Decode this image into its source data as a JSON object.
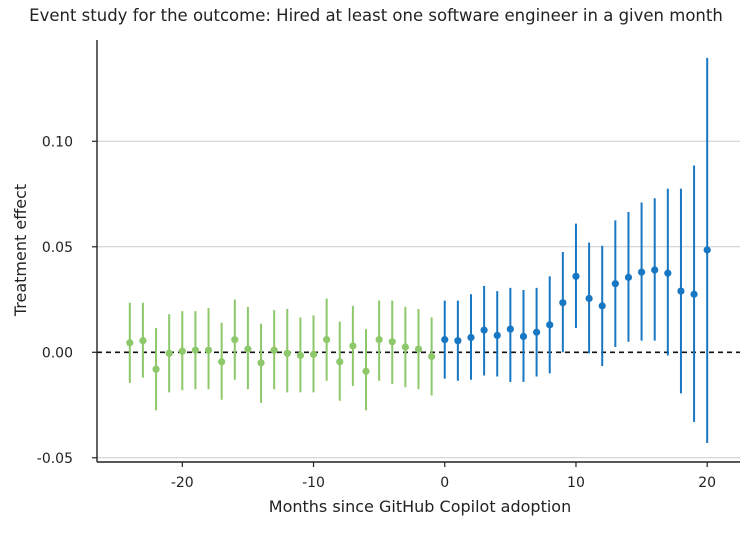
{
  "chart_data": {
    "type": "scatter",
    "title": "Event study for the outcome: Hired at least one software engineer in a given month",
    "xlabel": "Months since GitHub Copilot adoption",
    "ylabel": "Treatment effect",
    "xlim": [
      -26.5,
      22.5
    ],
    "ylim": [
      -0.052,
      0.148
    ],
    "x_ticks": [
      -20,
      -10,
      0,
      10,
      20
    ],
    "x_tick_labels": [
      "-20",
      "-10",
      "0",
      "10",
      "20"
    ],
    "y_ticks": [
      -0.05,
      0.0,
      0.05,
      0.1
    ],
    "y_tick_labels": [
      "-0.05",
      "0.00",
      "0.05",
      "0.10"
    ],
    "grid": "horizontal",
    "reference_line": {
      "y": 0,
      "style": "dashed"
    },
    "colors": {
      "pre": "#8dc86a",
      "post": "#1877c2",
      "grid": "#cccccc",
      "axis": "#222222"
    },
    "series": [
      {
        "color": "#8dc86a",
        "points": [
          {
            "x": -24,
            "y": 0.0045,
            "lo": -0.0145,
            "hi": 0.0235
          },
          {
            "x": -23,
            "y": 0.0055,
            "lo": -0.012,
            "hi": 0.0235
          },
          {
            "x": -22,
            "y": -0.008,
            "lo": -0.0275,
            "hi": 0.0115
          },
          {
            "x": -21,
            "y": -0.0005,
            "lo": -0.019,
            "hi": 0.018
          },
          {
            "x": -20,
            "y": 0.0005,
            "lo": -0.018,
            "hi": 0.0195
          },
          {
            "x": -19,
            "y": 0.001,
            "lo": -0.0175,
            "hi": 0.0195
          },
          {
            "x": -18,
            "y": 0.001,
            "lo": -0.0175,
            "hi": 0.021
          },
          {
            "x": -17,
            "y": -0.0045,
            "lo": -0.0225,
            "hi": 0.014
          },
          {
            "x": -16,
            "y": 0.006,
            "lo": -0.013,
            "hi": 0.025
          },
          {
            "x": -15,
            "y": 0.0015,
            "lo": -0.0175,
            "hi": 0.0215
          },
          {
            "x": -14,
            "y": -0.005,
            "lo": -0.024,
            "hi": 0.0135
          },
          {
            "x": -13,
            "y": 0.001,
            "lo": -0.0175,
            "hi": 0.02
          },
          {
            "x": -12,
            "y": -0.0005,
            "lo": -0.019,
            "hi": 0.0205
          },
          {
            "x": -11,
            "y": -0.0015,
            "lo": -0.019,
            "hi": 0.0165
          },
          {
            "x": -10,
            "y": -0.001,
            "lo": -0.019,
            "hi": 0.0175
          },
          {
            "x": -9,
            "y": 0.006,
            "lo": -0.0135,
            "hi": 0.0255
          },
          {
            "x": -8,
            "y": -0.0045,
            "lo": -0.023,
            "hi": 0.0145
          },
          {
            "x": -7,
            "y": 0.003,
            "lo": -0.016,
            "hi": 0.022
          },
          {
            "x": -6,
            "y": -0.009,
            "lo": -0.0275,
            "hi": 0.011
          },
          {
            "x": -5,
            "y": 0.006,
            "lo": -0.0135,
            "hi": 0.0245
          },
          {
            "x": -4,
            "y": 0.005,
            "lo": -0.015,
            "hi": 0.0245
          },
          {
            "x": -3,
            "y": 0.0025,
            "lo": -0.0165,
            "hi": 0.0215
          },
          {
            "x": -2,
            "y": 0.0015,
            "lo": -0.0175,
            "hi": 0.0205
          },
          {
            "x": -1,
            "y": -0.002,
            "lo": -0.0205,
            "hi": 0.0165
          }
        ]
      },
      {
        "color": "#1877c2",
        "points": [
          {
            "x": 0,
            "y": 0.006,
            "lo": -0.0125,
            "hi": 0.0245
          },
          {
            "x": 1,
            "y": 0.0055,
            "lo": -0.0135,
            "hi": 0.0245
          },
          {
            "x": 2,
            "y": 0.007,
            "lo": -0.013,
            "hi": 0.0275
          },
          {
            "x": 3,
            "y": 0.0105,
            "lo": -0.011,
            "hi": 0.0315
          },
          {
            "x": 4,
            "y": 0.008,
            "lo": -0.0115,
            "hi": 0.029
          },
          {
            "x": 5,
            "y": 0.011,
            "lo": -0.014,
            "hi": 0.0305
          },
          {
            "x": 6,
            "y": 0.0075,
            "lo": -0.014,
            "hi": 0.0295
          },
          {
            "x": 7,
            "y": 0.0095,
            "lo": -0.0115,
            "hi": 0.0305
          },
          {
            "x": 8,
            "y": 0.013,
            "lo": -0.01,
            "hi": 0.036
          },
          {
            "x": 9,
            "y": 0.0235,
            "lo": 0.0,
            "hi": 0.0475
          },
          {
            "x": 10,
            "y": 0.036,
            "lo": 0.0115,
            "hi": 0.061
          },
          {
            "x": 11,
            "y": 0.0255,
            "lo": -0.0005,
            "hi": 0.052
          },
          {
            "x": 12,
            "y": 0.022,
            "lo": -0.0065,
            "hi": 0.0505
          },
          {
            "x": 13,
            "y": 0.0325,
            "lo": 0.0025,
            "hi": 0.0625
          },
          {
            "x": 14,
            "y": 0.0355,
            "lo": 0.005,
            "hi": 0.0665
          },
          {
            "x": 15,
            "y": 0.038,
            "lo": 0.0055,
            "hi": 0.071
          },
          {
            "x": 16,
            "y": 0.039,
            "lo": 0.0055,
            "hi": 0.073
          },
          {
            "x": 17,
            "y": 0.0375,
            "lo": -0.0015,
            "hi": 0.0775
          },
          {
            "x": 18,
            "y": 0.029,
            "lo": -0.0195,
            "hi": 0.0775
          },
          {
            "x": 19,
            "y": 0.0275,
            "lo": -0.033,
            "hi": 0.0885
          },
          {
            "x": 20,
            "y": 0.0485,
            "lo": -0.043,
            "hi": 0.1395
          }
        ]
      }
    ]
  }
}
